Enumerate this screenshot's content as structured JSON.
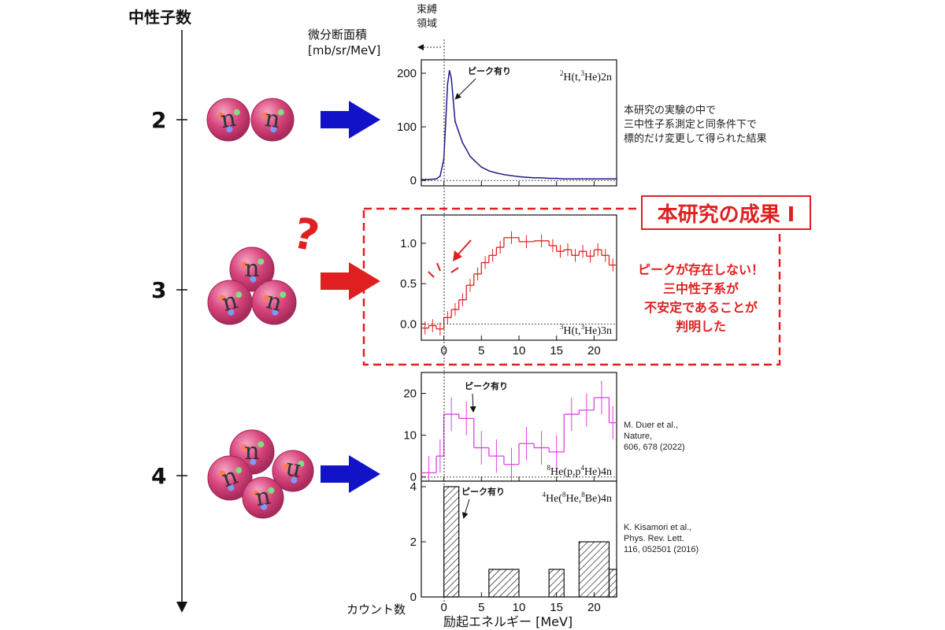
{
  "axis_title": "中性子数",
  "neutron_numbers": [
    "2",
    "3",
    "4"
  ],
  "nucleon_label": "n",
  "question_mark": "?",
  "bound_region": "束縛\n領域",
  "ylabel": "微分断面積\n[mb/sr/MeV]",
  "ylabel_counts": "カウント数",
  "xlabel": "励起エネルギー [MeV]",
  "peak_label": "ピーク有り",
  "note_2n": "本研究の実験の中で\n三中性子系測定と同条件下で\n標的だけ変更して得られた結果",
  "result_box": "本研究の成果 I",
  "result_note": "ピークが存在しない！\n三中性子系が\n不安定であることが\n判明した",
  "ref_1": "M. Duer et al.,\nNature,\n606, 678 (2022)",
  "ref_2": "K. Kisamori et al.,\nPhys. Rev. Lett.\n116, 052501 (2016)",
  "colors": {
    "blue_arrow": "#1212c8",
    "red": "#e02020",
    "sphere": "#d9467e",
    "navy": "#1c1c8a",
    "magenta": "#e040e0"
  },
  "chart_data": [
    {
      "type": "line",
      "reaction": "2H(t,3He)2n",
      "reaction_parts": [
        [
          "2",
          "H(t,"
        ],
        [
          "3",
          "He)2n"
        ]
      ],
      "xlim": [
        -3,
        23
      ],
      "ylim": [
        -10,
        225
      ],
      "yticks": [
        "200",
        "100",
        "0"
      ],
      "ytick_values": [
        200,
        100,
        0
      ],
      "xticks": [
        0,
        5,
        10,
        15,
        20
      ],
      "x": [
        -3,
        -2,
        -1,
        -0.5,
        0,
        0.25,
        0.5,
        0.75,
        1,
        1.25,
        1.5,
        2,
        2.5,
        3,
        3.5,
        4,
        5,
        6,
        7,
        8,
        9,
        10,
        11,
        12,
        13,
        14,
        15,
        16,
        17,
        18,
        19,
        20,
        21,
        22,
        23
      ],
      "y": [
        2,
        2,
        3,
        8,
        40,
        110,
        180,
        205,
        190,
        150,
        110,
        90,
        70,
        58,
        45,
        38,
        25,
        18,
        14,
        11,
        9,
        7,
        6,
        5,
        5,
        4,
        4,
        3,
        3,
        3,
        3,
        3,
        3,
        3,
        3
      ]
    },
    {
      "type": "line",
      "reaction": "3H(t,3He)3n",
      "reaction_parts": [
        [
          "3",
          "H(t,"
        ],
        [
          "3",
          "He)3n"
        ]
      ],
      "xlim": [
        -3,
        23
      ],
      "ylim": [
        -0.2,
        1.35
      ],
      "yticks": [
        "1.0",
        "0.5",
        "0.0"
      ],
      "ytick_values": [
        1.0,
        0.5,
        0.0
      ],
      "xticks": [
        0,
        5,
        10,
        15,
        20
      ],
      "x": [
        -3,
        -2,
        -1,
        0,
        1,
        2,
        3,
        4,
        5,
        6,
        7,
        8,
        10,
        12,
        14,
        15,
        16,
        17,
        18,
        19,
        20,
        21,
        22
      ],
      "y": [
        -0.05,
        -0.02,
        -0.06,
        0.08,
        0.18,
        0.3,
        0.48,
        0.62,
        0.76,
        0.85,
        0.95,
        1.07,
        1.02,
        1.03,
        0.97,
        0.9,
        0.92,
        0.85,
        0.9,
        0.84,
        0.92,
        0.85,
        0.73
      ]
    },
    {
      "type": "line",
      "reaction": "8He(p,p4He)4n",
      "reaction_parts": [
        [
          "8",
          "He(p,p"
        ],
        [
          "4",
          "He)4n"
        ]
      ],
      "xlim": [
        -3,
        23
      ],
      "ylim": [
        -1,
        25
      ],
      "yticks": [
        "20",
        "10",
        "0"
      ],
      "ytick_values": [
        20,
        10,
        0
      ],
      "xticks": [
        0,
        5,
        10,
        15,
        20
      ],
      "x": [
        -3,
        -1,
        0,
        2,
        4,
        6,
        8,
        10,
        12,
        14,
        16,
        18,
        20,
        22
      ],
      "y": [
        1,
        5,
        15,
        14,
        7,
        5,
        3,
        8,
        7,
        6,
        15,
        16,
        19,
        13
      ]
    },
    {
      "type": "bar",
      "reaction": "4He(8He,8Be)4n",
      "reaction_parts": [
        [
          "4",
          "He("
        ],
        [
          "8",
          "He,"
        ],
        [
          "8",
          "Be)4n"
        ]
      ],
      "xlim": [
        -3,
        23
      ],
      "ylim": [
        0,
        4.2
      ],
      "yticks": [
        "4",
        "2",
        "0"
      ],
      "ytick_values": [
        4,
        2,
        0
      ],
      "xticks": [
        0,
        5,
        10,
        15,
        20
      ],
      "xtick_labels": [
        "0",
        "5",
        "10",
        "15",
        "20"
      ],
      "bins": [
        [
          0,
          2,
          4
        ],
        [
          6,
          10,
          1
        ],
        [
          14,
          16,
          1
        ],
        [
          18,
          22,
          2
        ],
        [
          22,
          23,
          1
        ]
      ]
    }
  ]
}
